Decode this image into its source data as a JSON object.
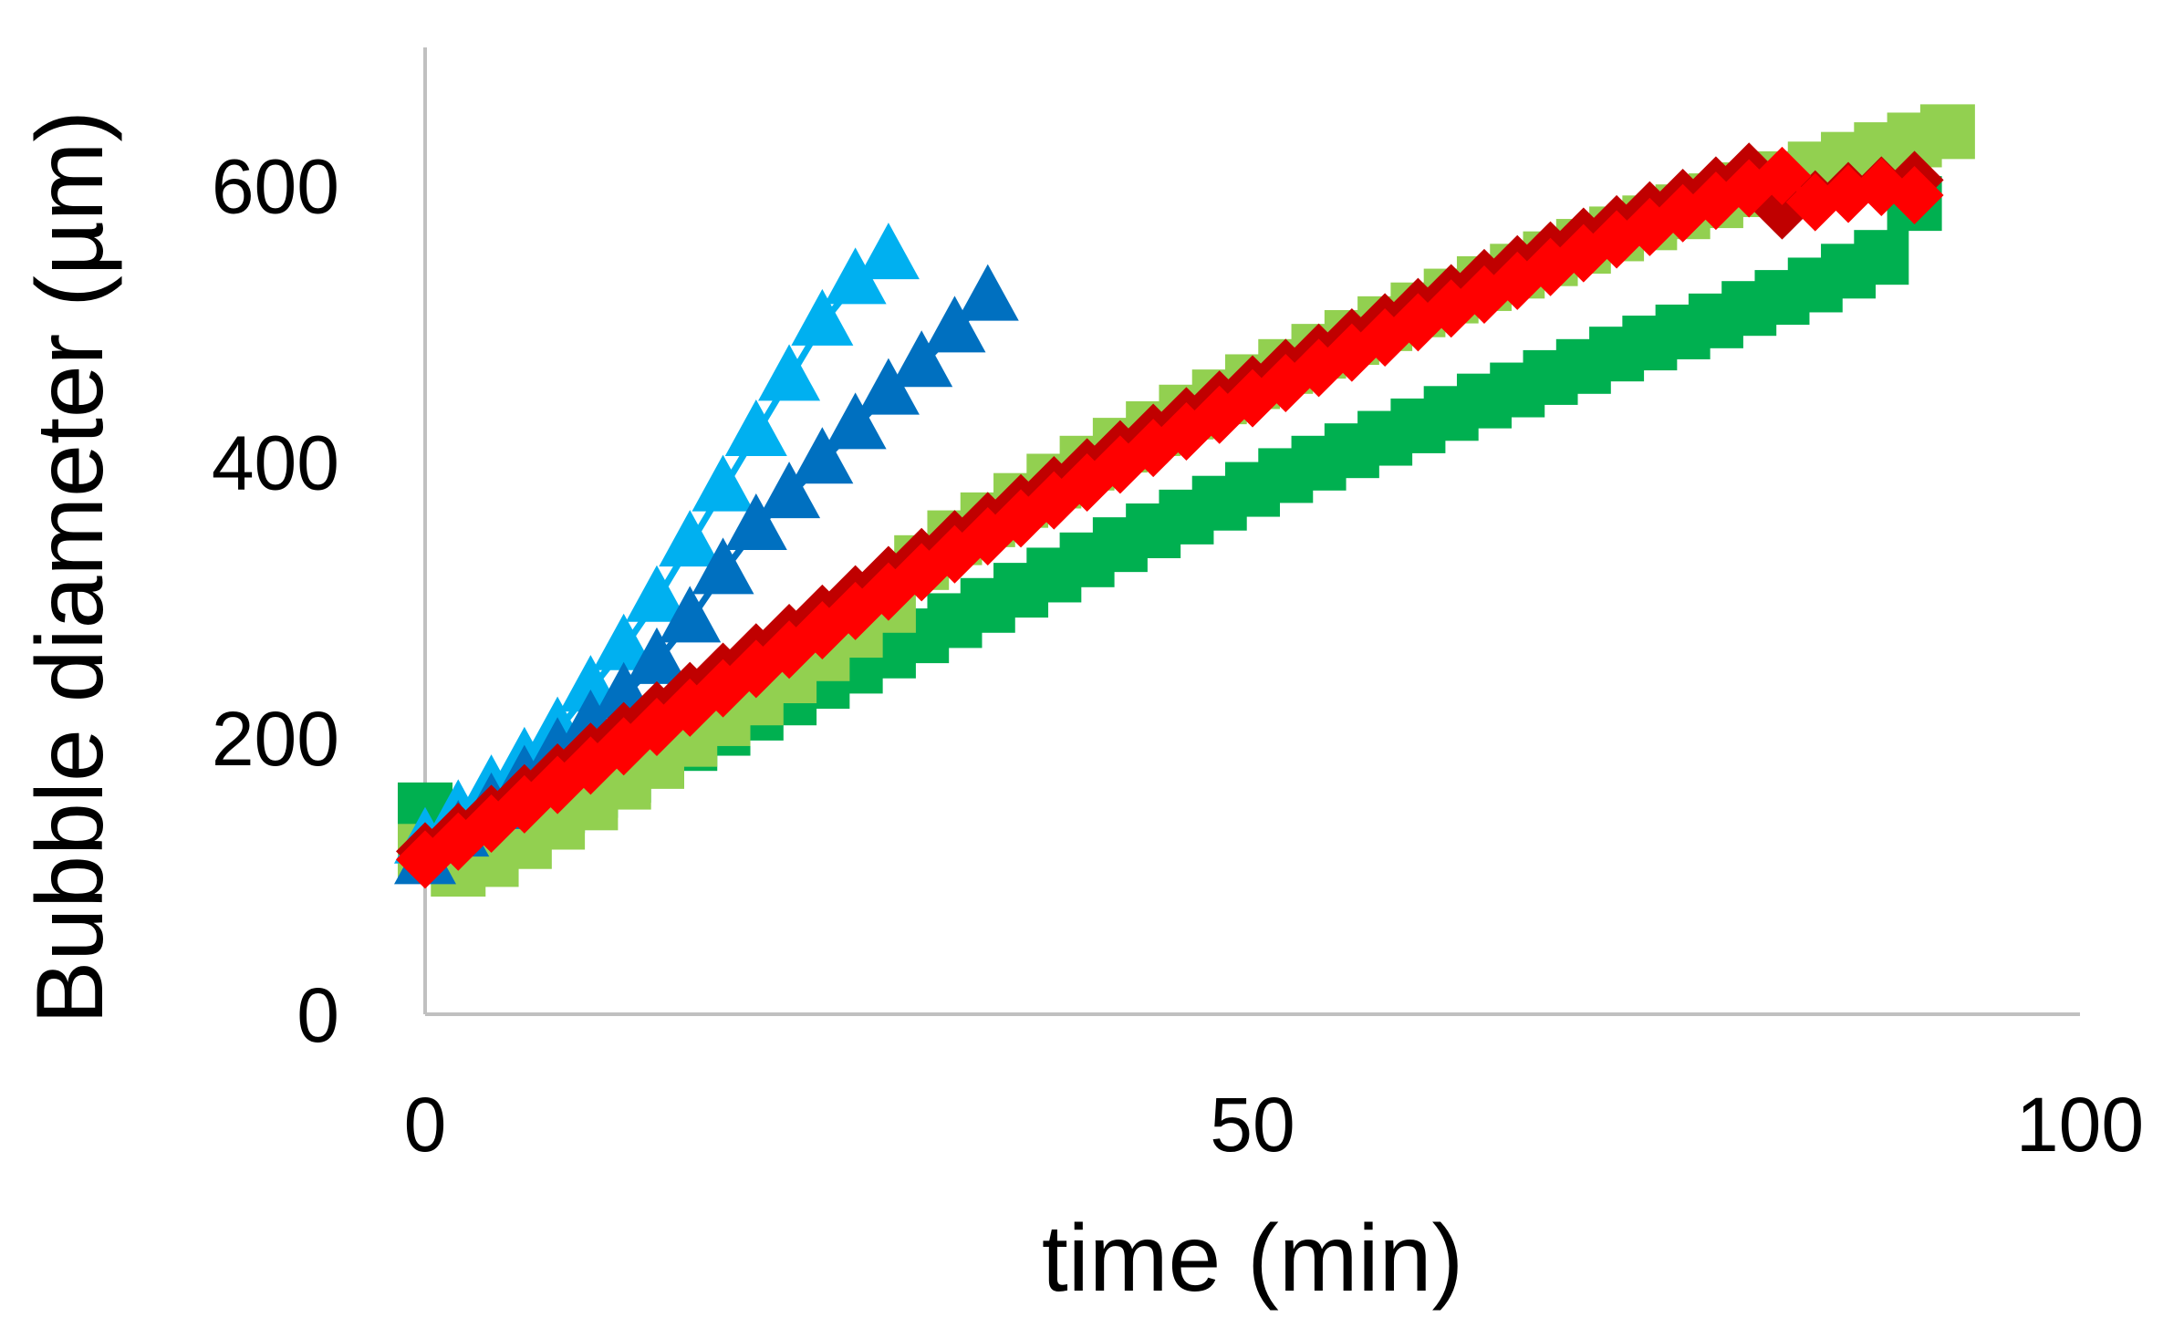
{
  "chart_data": {
    "type": "scatter",
    "title": "",
    "xlabel": "time (min)",
    "ylabel": "Bubble diameter (µm)",
    "xlim": [
      0,
      100
    ],
    "ylim": [
      0,
      700
    ],
    "x_ticks": [
      "0",
      "50",
      "100"
    ],
    "y_ticks": [
      "0",
      "200",
      "400",
      "600"
    ],
    "x_tick_values": [
      0,
      50,
      100
    ],
    "y_tick_values": [
      0,
      200,
      400,
      600
    ],
    "grid": false,
    "legend": "none",
    "axis_color": "#c0c0c0",
    "series": [
      {
        "marker": "square",
        "color": "#00b050",
        "x": [
          0,
          2,
          4,
          6,
          8,
          10,
          12,
          14,
          16,
          18,
          20,
          22,
          24,
          26,
          28,
          30,
          32,
          34,
          36,
          38,
          40,
          42,
          44,
          46,
          48,
          50,
          52,
          54,
          56,
          58,
          60,
          62,
          64,
          66,
          68,
          70,
          72,
          74,
          76,
          78,
          80,
          82,
          84,
          86,
          88,
          90
        ],
        "y": [
          148,
          120,
          130,
          140,
          151,
          162,
          173,
          184,
          196,
          207,
          218,
          229,
          241,
          252,
          263,
          274,
          285,
          296,
          307,
          318,
          329,
          340,
          350,
          360,
          370,
          380,
          390,
          399,
          408,
          417,
          426,
          435,
          444,
          452,
          461,
          469,
          478,
          486,
          494,
          502,
          511,
          519,
          528,
          538,
          548,
          587
        ]
      },
      {
        "marker": "square",
        "color": "#92d050",
        "x": [
          0,
          2,
          4,
          6,
          8,
          10,
          12,
          14,
          16,
          18,
          20,
          22,
          24,
          26,
          28,
          30,
          32,
          34,
          36,
          38,
          40,
          42,
          44,
          46,
          48,
          50,
          52,
          54,
          56,
          58,
          60,
          62,
          64,
          66,
          68,
          70,
          72,
          74,
          76,
          78,
          80,
          82,
          84,
          86,
          88,
          90,
          92
        ],
        "y": [
          118,
          105,
          112,
          125,
          139,
          153,
          168,
          183,
          199,
          214,
          229,
          245,
          261,
          278,
          296,
          327,
          345,
          358,
          372,
          386,
          399,
          412,
          424,
          436,
          447,
          458,
          469,
          480,
          490,
          500,
          510,
          520,
          529,
          538,
          547,
          556,
          565,
          573,
          581,
          589,
          597,
          605,
          612,
          619,
          626,
          633,
          639
        ]
      },
      {
        "marker": "triangle",
        "color": "#00b0f0",
        "x": [
          0,
          2,
          4,
          6,
          8,
          10,
          12,
          14,
          16,
          18,
          20,
          22,
          24,
          26,
          28
        ],
        "y": [
          125,
          145,
          163,
          183,
          205,
          235,
          265,
          300,
          340,
          380,
          420,
          460,
          500,
          530,
          548
        ]
      },
      {
        "marker": "triangle",
        "color": "#0070c0",
        "x": [
          0,
          2,
          4,
          6,
          8,
          10,
          12,
          14,
          16,
          18,
          20,
          22,
          24,
          26,
          28,
          30,
          32,
          34
        ],
        "y": [
          110,
          130,
          150,
          170,
          190,
          210,
          230,
          255,
          285,
          320,
          352,
          375,
          400,
          425,
          450,
          470,
          495,
          518
        ]
      },
      {
        "marker": "diamond",
        "color": "#c00000",
        "x": [
          0,
          2,
          4,
          6,
          8,
          10,
          12,
          14,
          16,
          18,
          20,
          22,
          24,
          26,
          28,
          30,
          32,
          34,
          36,
          38,
          40,
          42,
          44,
          46,
          48,
          50,
          52,
          54,
          56,
          58,
          60,
          62,
          64,
          66,
          68,
          70,
          72,
          74,
          76,
          78,
          80,
          82,
          84,
          86,
          88,
          90
        ],
        "y": [
          118,
          132,
          145,
          160,
          175,
          190,
          205,
          220,
          234,
          248,
          262,
          276,
          290,
          304,
          318,
          331,
          344,
          357,
          370,
          383,
          396,
          409,
          421,
          433,
          445,
          456,
          468,
          479,
          490,
          501,
          512,
          522,
          533,
          543,
          553,
          563,
          572,
          582,
          591,
          600,
          610,
          582,
          590,
          596,
          600,
          604
        ]
      },
      {
        "marker": "diamond",
        "color": "#ff0000",
        "x": [
          0,
          2,
          4,
          6,
          8,
          10,
          12,
          14,
          16,
          18,
          20,
          22,
          24,
          26,
          28,
          30,
          32,
          34,
          36,
          38,
          40,
          42,
          44,
          46,
          48,
          50,
          52,
          54,
          56,
          58,
          60,
          62,
          64,
          66,
          68,
          70,
          72,
          74,
          76,
          78,
          80,
          82,
          84,
          86,
          88,
          90
        ],
        "y": [
          112,
          125,
          138,
          152,
          166,
          180,
          194,
          208,
          222,
          236,
          250,
          264,
          278,
          292,
          306,
          320,
          333,
          346,
          359,
          372,
          385,
          398,
          410,
          422,
          434,
          446,
          457,
          468,
          479,
          490,
          501,
          511,
          521,
          531,
          541,
          551,
          561,
          570,
          580,
          589,
          598,
          607,
          588,
          594,
          599,
          593
        ]
      }
    ]
  }
}
